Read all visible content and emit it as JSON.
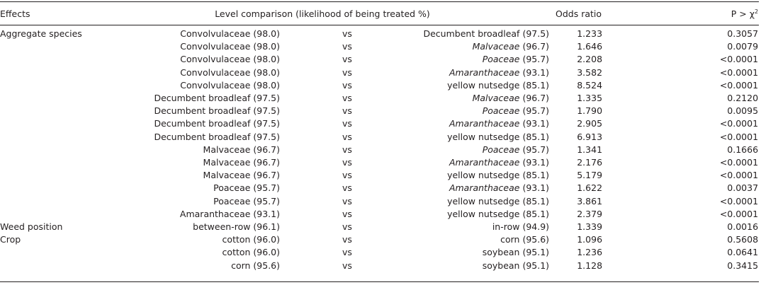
{
  "table": {
    "headers": {
      "effects": "Effects",
      "level_comparison": "Level comparison (likelihood of being treated %)",
      "odds_ratio": "Odds ratio",
      "p_value_prefix": "P > χ",
      "p_value_exponent": "2"
    },
    "rows": [
      {
        "effect": "Aggregate species",
        "level1": "Convolvulaceae (98.0)",
        "vs": "vs",
        "level2_name": "Decumbent broadleaf",
        "level2_pct": " (97.5)",
        "level2_italic": false,
        "odds_ratio": "1.233",
        "p": "0.3057"
      },
      {
        "effect": "",
        "level1": "Convolvulaceae (98.0)",
        "vs": "vs",
        "level2_name": "Malvaceae",
        "level2_pct": " (96.7)",
        "level2_italic": true,
        "odds_ratio": "1.646",
        "p": "0.0079"
      },
      {
        "effect": "",
        "level1": "Convolvulaceae (98.0)",
        "vs": "vs",
        "level2_name": "Poaceae",
        "level2_pct": " (95.7)",
        "level2_italic": true,
        "odds_ratio": "2.208",
        "p": "<0.0001"
      },
      {
        "effect": "",
        "level1": "Convolvulaceae (98.0)",
        "vs": "vs",
        "level2_name": "Amaranthaceae",
        "level2_pct": " (93.1)",
        "level2_italic": true,
        "odds_ratio": "3.582",
        "p": "<0.0001"
      },
      {
        "effect": "",
        "level1": "Convolvulaceae (98.0)",
        "vs": "vs",
        "level2_name": "yellow nutsedge",
        "level2_pct": " (85.1)",
        "level2_italic": false,
        "odds_ratio": "8.524",
        "p": "<0.0001"
      },
      {
        "effect": "",
        "level1": "Decumbent broadleaf (97.5)",
        "vs": "vs",
        "level2_name": "Malvaceae",
        "level2_pct": " (96.7)",
        "level2_italic": true,
        "odds_ratio": "1.335",
        "p": "0.2120"
      },
      {
        "effect": "",
        "level1": "Decumbent broadleaf (97.5)",
        "vs": "vs",
        "level2_name": "Poaceae",
        "level2_pct": " (95.7)",
        "level2_italic": true,
        "odds_ratio": "1.790",
        "p": "0.0095"
      },
      {
        "effect": "",
        "level1": "Decumbent broadleaf (97.5)",
        "vs": "vs",
        "level2_name": "Amaranthaceae",
        "level2_pct": " (93.1)",
        "level2_italic": true,
        "odds_ratio": "2.905",
        "p": "<0.0001"
      },
      {
        "effect": "",
        "level1": "Decumbent broadleaf (97.5)",
        "vs": "vs",
        "level2_name": "yellow nutsedge",
        "level2_pct": " (85.1)",
        "level2_italic": false,
        "odds_ratio": "6.913",
        "p": "<0.0001"
      },
      {
        "effect": "",
        "level1": "Malvaceae (96.7)",
        "vs": "vs",
        "level2_name": "Poaceae",
        "level2_pct": " (95.7)",
        "level2_italic": true,
        "odds_ratio": "1.341",
        "p": "0.1666"
      },
      {
        "effect": "",
        "level1": "Malvaceae (96.7)",
        "vs": "vs",
        "level2_name": "Amaranthaceae",
        "level2_pct": " (93.1)",
        "level2_italic": true,
        "odds_ratio": "2.176",
        "p": "<0.0001"
      },
      {
        "effect": "",
        "level1": "Malvaceae (96.7)",
        "vs": "vs",
        "level2_name": "yellow nutsedge",
        "level2_pct": " (85.1)",
        "level2_italic": false,
        "odds_ratio": "5.179",
        "p": "<0.0001"
      },
      {
        "effect": "",
        "level1": "Poaceae (95.7)",
        "vs": "vs",
        "level2_name": "Amaranthaceae",
        "level2_pct": " (93.1)",
        "level2_italic": true,
        "odds_ratio": "1.622",
        "p": "0.0037"
      },
      {
        "effect": "",
        "level1": "Poaceae (95.7)",
        "vs": "vs",
        "level2_name": "yellow nutsedge",
        "level2_pct": " (85.1)",
        "level2_italic": false,
        "odds_ratio": "3.861",
        "p": "<0.0001"
      },
      {
        "effect": "",
        "level1": "Amaranthaceae (93.1)",
        "vs": "vs",
        "level2_name": "yellow nutsedge",
        "level2_pct": " (85.1)",
        "level2_italic": false,
        "odds_ratio": "2.379",
        "p": "<0.0001"
      },
      {
        "effect": "Weed position",
        "level1": "between-row (96.1)",
        "vs": "vs",
        "level2_name": "in-row",
        "level2_pct": " (94.9)",
        "level2_italic": false,
        "odds_ratio": "1.339",
        "p": "0.0016"
      },
      {
        "effect": "Crop",
        "level1": "cotton (96.0)",
        "vs": "vs",
        "level2_name": "corn",
        "level2_pct": " (95.6)",
        "level2_italic": false,
        "odds_ratio": "1.096",
        "p": "0.5608"
      },
      {
        "effect": "",
        "level1": "cotton (96.0)",
        "vs": "vs",
        "level2_name": "soybean",
        "level2_pct": " (95.1)",
        "level2_italic": false,
        "odds_ratio": "1.236",
        "p": "0.0641"
      },
      {
        "effect": "",
        "level1": "corn (95.6)",
        "vs": "vs",
        "level2_name": "soybean",
        "level2_pct": " (95.1)",
        "level2_italic": false,
        "odds_ratio": "1.128",
        "p": "0.3415"
      }
    ]
  }
}
